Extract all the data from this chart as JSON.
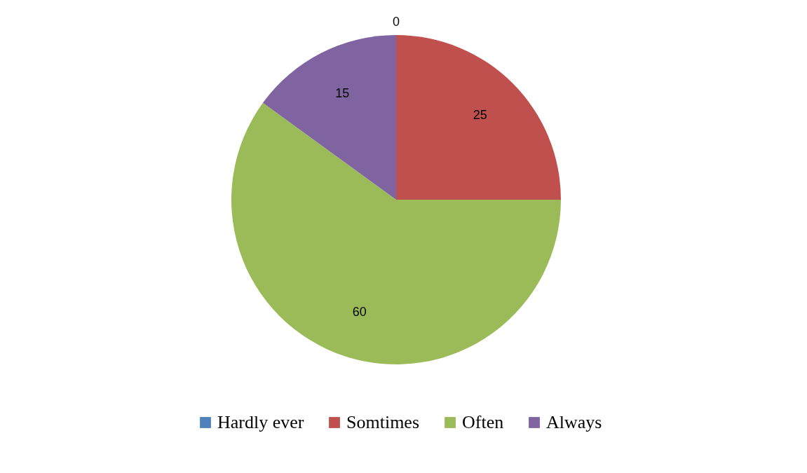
{
  "chart_data": {
    "type": "pie",
    "categories": [
      "Hardly ever",
      "Somtimes",
      "Often",
      "Always"
    ],
    "values": [
      0,
      25,
      60,
      15
    ],
    "colors": [
      "#4f81bd",
      "#c0504d",
      "#9bbb59",
      "#8064a2"
    ],
    "value_labels": [
      "0",
      "25",
      "60",
      "15"
    ],
    "legend": "bottom"
  }
}
